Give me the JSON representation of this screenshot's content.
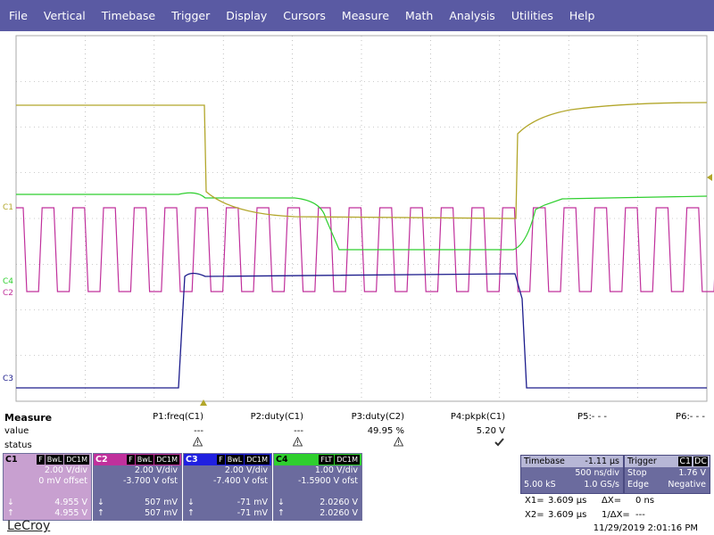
{
  "menu": [
    "File",
    "Vertical",
    "Timebase",
    "Trigger",
    "Display",
    "Cursors",
    "Measure",
    "Math",
    "Analysis",
    "Utilities",
    "Help"
  ],
  "colors": {
    "menu_bg": "#5a5aa3",
    "c1": "#b2a62a",
    "c2": "#c0309c",
    "c3": "#1c1c8c",
    "c4": "#2fcf2f",
    "grid": "#999999"
  },
  "channel_labels": {
    "c1": "C1",
    "c2": "C2",
    "c3": "C3",
    "c4": "C4"
  },
  "measure": {
    "title": "Measure",
    "row_labels": [
      "value",
      "status"
    ],
    "params": [
      {
        "label": "P1:freq(C1)",
        "value": "---",
        "status": "warn"
      },
      {
        "label": "P2:duty(C1)",
        "value": "---",
        "status": "warn"
      },
      {
        "label": "P3:duty(C2)",
        "value": "49.95 %",
        "status": "warn"
      },
      {
        "label": "P4:pkpk(C1)",
        "value": "5.20 V",
        "status": "ok"
      },
      {
        "label": "P5:- - -",
        "value": "",
        "status": ""
      },
      {
        "label": "P6:- - -",
        "value": "",
        "status": ""
      }
    ]
  },
  "channels": [
    {
      "name": "C1",
      "tags": [
        "F",
        "BwL",
        "DC1M"
      ],
      "vdiv": "2.00 V/div",
      "offset": "0 mV offset",
      "v1": "4.955 V",
      "v2": "4.955 V",
      "bg": "#c8a0d0",
      "hdr": "#c8a0d0",
      "name_color": "#000"
    },
    {
      "name": "C2",
      "tags": [
        "F",
        "BwL",
        "DC1M"
      ],
      "vdiv": "2.00 V/div",
      "offset": "-3.700 V ofst",
      "v1": "507 mV",
      "v2": "507 mV",
      "bg": "#6b6b9e",
      "hdr": "#c0309c",
      "name_color": "#fff"
    },
    {
      "name": "C3",
      "tags": [
        "F",
        "BwL",
        "DC1M"
      ],
      "vdiv": "2.00 V/div",
      "offset": "-7.400 V ofst",
      "v1": "-71 mV",
      "v2": "-71 mV",
      "bg": "#6b6b9e",
      "hdr": "#2020e0",
      "name_color": "#fff"
    },
    {
      "name": "C4",
      "tags": [
        "FLT",
        "DC1M"
      ],
      "vdiv": "1.00 V/div",
      "offset": "-1.5900 V ofst",
      "v1": "2.0260 V",
      "v2": "2.0260 V",
      "bg": "#6b6b9e",
      "hdr": "#2fcf2f",
      "name_color": "#000"
    }
  ],
  "timebase": {
    "label": "Timebase",
    "delay": "-1.11 µs",
    "tdiv": "500 ns/div",
    "samples": "5.00 kS",
    "rate": "1.0 GS/s"
  },
  "trigger": {
    "label": "Trigger",
    "chan": "C1",
    "coupling": "DC",
    "mode": "Stop",
    "level": "1.76 V",
    "type": "Edge",
    "slope": "Negative"
  },
  "cursors": {
    "x1_label": "X1=",
    "x1": "3.609 µs",
    "dx_label": "ΔX=",
    "dx": "0 ns",
    "x2_label": "X2=",
    "x2": "3.609 µs",
    "inv_label": "1/ΔX=",
    "inv": "---"
  },
  "footer": {
    "brand": "LeCroy",
    "datetime": "11/29/2019 2:01:16 PM"
  }
}
